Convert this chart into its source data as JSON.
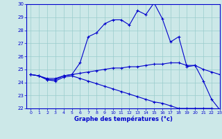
{
  "title": "Graphe des températures (°c)",
  "line1_x": [
    0,
    1,
    2,
    3,
    4,
    5,
    6,
    7,
    8,
    9,
    10,
    11,
    12,
    13,
    14,
    15,
    16,
    17,
    18,
    19,
    20,
    21,
    22,
    23
  ],
  "line1_y": [
    24.6,
    24.5,
    24.2,
    24.2,
    24.5,
    24.6,
    25.5,
    27.5,
    27.8,
    28.5,
    28.8,
    28.8,
    28.4,
    29.5,
    29.2,
    30.1,
    28.9,
    27.1,
    27.5,
    25.2,
    25.3,
    24.1,
    22.7,
    21.9
  ],
  "line2_x": [
    0,
    1,
    2,
    3,
    4,
    5,
    6,
    7,
    8,
    9,
    10,
    11,
    12,
    13,
    14,
    15,
    16,
    17,
    18,
    19,
    20,
    21,
    22,
    23
  ],
  "line2_y": [
    24.6,
    24.5,
    24.3,
    24.3,
    24.5,
    24.6,
    24.7,
    24.8,
    24.9,
    25.0,
    25.1,
    25.1,
    25.2,
    25.2,
    25.3,
    25.4,
    25.4,
    25.5,
    25.5,
    25.3,
    25.3,
    25.0,
    24.8,
    24.6
  ],
  "line3_x": [
    0,
    1,
    2,
    3,
    4,
    5,
    6,
    7,
    8,
    9,
    10,
    11,
    12,
    13,
    14,
    15,
    16,
    17,
    18,
    19,
    20,
    21,
    22,
    23
  ],
  "line3_y": [
    24.6,
    24.5,
    24.2,
    24.1,
    24.4,
    24.5,
    24.3,
    24.1,
    23.9,
    23.7,
    23.5,
    23.3,
    23.1,
    22.9,
    22.7,
    22.5,
    22.4,
    22.2,
    22.0,
    22.0,
    22.0,
    22.0,
    22.0,
    21.9
  ],
  "line_color": "#0000cc",
  "bg_color": "#cce8e8",
  "grid_color": "#99cccc",
  "ylim": [
    22,
    30
  ],
  "xlim": [
    -0.5,
    23
  ],
  "yticks": [
    22,
    23,
    24,
    25,
    26,
    27,
    28,
    29,
    30
  ],
  "xticks": [
    0,
    1,
    2,
    3,
    4,
    5,
    6,
    7,
    8,
    9,
    10,
    11,
    12,
    13,
    14,
    15,
    16,
    17,
    18,
    19,
    20,
    21,
    22,
    23
  ]
}
